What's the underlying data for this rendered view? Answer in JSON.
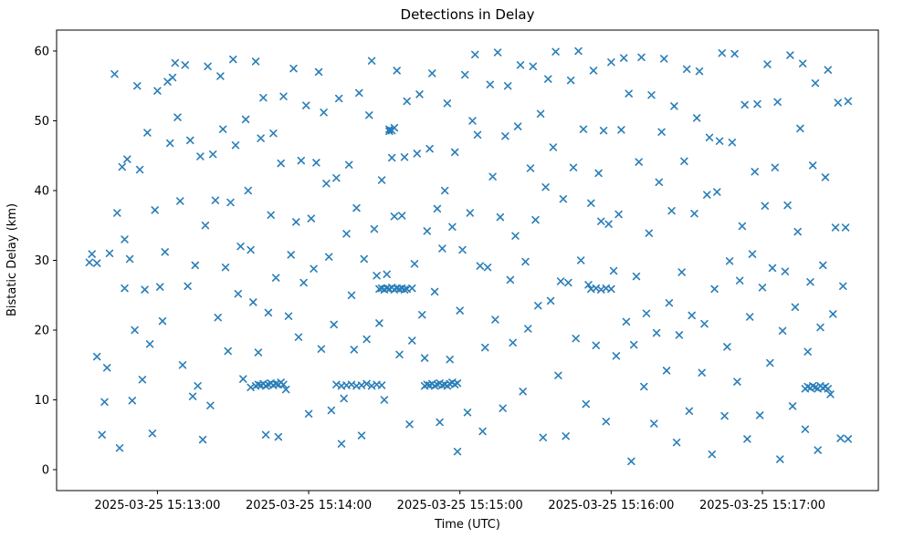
{
  "figure": {
    "title": "Detections in Delay",
    "xlabel": "Time (UTC)",
    "ylabel": "Bistatic Delay (km)"
  },
  "chart_data": {
    "type": "scatter",
    "title": "Detections in Delay",
    "xlabel": "Time (UTC)",
    "ylabel": "Bistatic Delay (km)",
    "marker": "x",
    "marker_color": "#1f77b4",
    "x_axis_unit": "seconds, 0 = 2025-03-25 15:12:00 UTC",
    "xlim": [
      20,
      346
    ],
    "ylim": [
      -3,
      63
    ],
    "xticks": [
      {
        "value": 60,
        "label": "2025-03-25 15:13:00"
      },
      {
        "value": 120,
        "label": "2025-03-25 15:14:00"
      },
      {
        "value": 180,
        "label": "2025-03-25 15:15:00"
      },
      {
        "value": 240,
        "label": "2025-03-25 15:16:00"
      },
      {
        "value": 300,
        "label": "2025-03-25 15:17:00"
      }
    ],
    "yticks": [
      0,
      10,
      20,
      30,
      40,
      50,
      60
    ],
    "points": [
      [
        33,
        29.7
      ],
      [
        34,
        30.9
      ],
      [
        36,
        29.6
      ],
      [
        36,
        16.2
      ],
      [
        38,
        5.0
      ],
      [
        39,
        9.7
      ],
      [
        40,
        14.6
      ],
      [
        41,
        31.0
      ],
      [
        43,
        56.7
      ],
      [
        44,
        36.8
      ],
      [
        45,
        3.1
      ],
      [
        46,
        43.4
      ],
      [
        47,
        33.0
      ],
      [
        47,
        26.0
      ],
      [
        48,
        44.5
      ],
      [
        49,
        30.2
      ],
      [
        50,
        9.9
      ],
      [
        51,
        20.0
      ],
      [
        52,
        55.0
      ],
      [
        53,
        43.0
      ],
      [
        54,
        12.9
      ],
      [
        55,
        25.8
      ],
      [
        56,
        48.3
      ],
      [
        57,
        18.0
      ],
      [
        58,
        5.2
      ],
      [
        59,
        37.2
      ],
      [
        60,
        54.3
      ],
      [
        61,
        26.2
      ],
      [
        62,
        21.3
      ],
      [
        63,
        31.2
      ],
      [
        64,
        55.6
      ],
      [
        65,
        46.8
      ],
      [
        66,
        56.2
      ],
      [
        67,
        58.3
      ],
      [
        68,
        50.5
      ],
      [
        69,
        38.5
      ],
      [
        70,
        15.0
      ],
      [
        71,
        58.0
      ],
      [
        72,
        26.3
      ],
      [
        73,
        47.2
      ],
      [
        74,
        10.5
      ],
      [
        75,
        29.3
      ],
      [
        76,
        12.0
      ],
      [
        77,
        44.9
      ],
      [
        78,
        4.3
      ],
      [
        79,
        35.0
      ],
      [
        80,
        57.8
      ],
      [
        81,
        9.2
      ],
      [
        82,
        45.2
      ],
      [
        83,
        38.6
      ],
      [
        84,
        21.8
      ],
      [
        85,
        56.4
      ],
      [
        86,
        48.8
      ],
      [
        87,
        29.0
      ],
      [
        88,
        17.0
      ],
      [
        89,
        38.3
      ],
      [
        90,
        58.8
      ],
      [
        91,
        46.5
      ],
      [
        92,
        25.2
      ],
      [
        93,
        32.0
      ],
      [
        94,
        13.0
      ],
      [
        95,
        50.2
      ],
      [
        96,
        40.0
      ],
      [
        97,
        31.5
      ],
      [
        98,
        24.0
      ],
      [
        99,
        58.5
      ],
      [
        100,
        16.8
      ],
      [
        101,
        47.5
      ],
      [
        102,
        53.3
      ],
      [
        103,
        5.0
      ],
      [
        104,
        22.5
      ],
      [
        105,
        36.5
      ],
      [
        106,
        48.2
      ],
      [
        107,
        27.5
      ],
      [
        108,
        4.7
      ],
      [
        109,
        43.9
      ],
      [
        110,
        53.5
      ],
      [
        111,
        11.5
      ],
      [
        112,
        22.0
      ],
      [
        113,
        30.8
      ],
      [
        114,
        57.5
      ],
      [
        115,
        35.5
      ],
      [
        116,
        19.0
      ],
      [
        117,
        44.3
      ],
      [
        118,
        26.8
      ],
      [
        119,
        52.2
      ],
      [
        120,
        8.0
      ],
      [
        121,
        36.0
      ],
      [
        122,
        28.8
      ],
      [
        123,
        44.0
      ],
      [
        124,
        57.0
      ],
      [
        125,
        17.3
      ],
      [
        97,
        11.8
      ],
      [
        99,
        12.0
      ],
      [
        100,
        12.2
      ],
      [
        101,
        12.1
      ],
      [
        102,
        12.3
      ],
      [
        103,
        12.0
      ],
      [
        104,
        12.2
      ],
      [
        105,
        12.4
      ],
      [
        106,
        12.1
      ],
      [
        107,
        12.3
      ],
      [
        108,
        12.2
      ],
      [
        109,
        12.5
      ],
      [
        110,
        12.2
      ],
      [
        126,
        51.2
      ],
      [
        127,
        41.0
      ],
      [
        128,
        30.5
      ],
      [
        129,
        8.5
      ],
      [
        130,
        20.8
      ],
      [
        131,
        41.8
      ],
      [
        132,
        53.2
      ],
      [
        133,
        3.7
      ],
      [
        134,
        10.2
      ],
      [
        135,
        33.8
      ],
      [
        136,
        43.7
      ],
      [
        137,
        25.0
      ],
      [
        138,
        17.2
      ],
      [
        139,
        37.5
      ],
      [
        140,
        54.0
      ],
      [
        141,
        4.9
      ],
      [
        142,
        30.2
      ],
      [
        143,
        18.7
      ],
      [
        144,
        50.8
      ],
      [
        145,
        58.6
      ],
      [
        146,
        34.5
      ],
      [
        147,
        27.8
      ],
      [
        148,
        21.0
      ],
      [
        149,
        41.5
      ],
      [
        150,
        10.0
      ],
      [
        151,
        28.0
      ],
      [
        152,
        48.5
      ],
      [
        153,
        44.7
      ],
      [
        154,
        36.3
      ],
      [
        155,
        57.2
      ],
      [
        131,
        12.2
      ],
      [
        133,
        12.0
      ],
      [
        135,
        12.1
      ],
      [
        137,
        12.2
      ],
      [
        139,
        12.0
      ],
      [
        141,
        12.1
      ],
      [
        143,
        12.3
      ],
      [
        145,
        12.0
      ],
      [
        147,
        12.2
      ],
      [
        149,
        12.1
      ],
      [
        148,
        25.9
      ],
      [
        149,
        26.0
      ],
      [
        150,
        25.8
      ],
      [
        151,
        26.0
      ],
      [
        152,
        25.9
      ],
      [
        153,
        26.1
      ],
      [
        154,
        25.8
      ],
      [
        155,
        26.0
      ],
      [
        156,
        25.9
      ],
      [
        157,
        26.0
      ],
      [
        158,
        25.8
      ],
      [
        159,
        25.9
      ],
      [
        161,
        26.0
      ],
      [
        152,
        48.8
      ],
      [
        153,
        48.6
      ],
      [
        154,
        49.0
      ],
      [
        156,
        16.5
      ],
      [
        157,
        36.4
      ],
      [
        158,
        44.8
      ],
      [
        159,
        52.8
      ],
      [
        160,
        6.5
      ],
      [
        161,
        18.5
      ],
      [
        162,
        29.5
      ],
      [
        163,
        45.3
      ],
      [
        164,
        53.8
      ],
      [
        165,
        22.2
      ],
      [
        166,
        16.0
      ],
      [
        167,
        34.2
      ],
      [
        168,
        46.0
      ],
      [
        169,
        56.8
      ],
      [
        170,
        25.5
      ],
      [
        171,
        37.4
      ],
      [
        172,
        6.8
      ],
      [
        173,
        31.7
      ],
      [
        174,
        40.0
      ],
      [
        175,
        52.5
      ],
      [
        176,
        15.8
      ],
      [
        177,
        34.8
      ],
      [
        178,
        45.5
      ],
      [
        179,
        2.6
      ],
      [
        180,
        22.8
      ],
      [
        181,
        31.5
      ],
      [
        182,
        56.6
      ],
      [
        183,
        8.2
      ],
      [
        184,
        36.8
      ],
      [
        185,
        50.0
      ],
      [
        166,
        12.0
      ],
      [
        167,
        12.2
      ],
      [
        168,
        12.1
      ],
      [
        169,
        12.3
      ],
      [
        170,
        12.0
      ],
      [
        171,
        12.2
      ],
      [
        172,
        12.4
      ],
      [
        173,
        12.1
      ],
      [
        174,
        12.2
      ],
      [
        175,
        12.0
      ],
      [
        176,
        12.3
      ],
      [
        177,
        12.5
      ],
      [
        178,
        12.2
      ],
      [
        179,
        12.4
      ],
      [
        186,
        59.5
      ],
      [
        187,
        48.0
      ],
      [
        188,
        29.2
      ],
      [
        189,
        5.5
      ],
      [
        190,
        17.5
      ],
      [
        191,
        29.0
      ],
      [
        192,
        55.2
      ],
      [
        193,
        42.0
      ],
      [
        194,
        21.5
      ],
      [
        195,
        59.8
      ],
      [
        196,
        36.2
      ],
      [
        197,
        8.8
      ],
      [
        198,
        47.8
      ],
      [
        199,
        55.0
      ],
      [
        200,
        27.2
      ],
      [
        201,
        18.2
      ],
      [
        202,
        33.5
      ],
      [
        203,
        49.2
      ],
      [
        204,
        58.0
      ],
      [
        205,
        11.2
      ],
      [
        206,
        29.8
      ],
      [
        207,
        20.2
      ],
      [
        208,
        43.2
      ],
      [
        209,
        57.8
      ],
      [
        210,
        35.8
      ],
      [
        211,
        23.5
      ],
      [
        212,
        51.0
      ],
      [
        213,
        4.6
      ],
      [
        214,
        40.5
      ],
      [
        215,
        56.0
      ],
      [
        216,
        24.2
      ],
      [
        217,
        46.2
      ],
      [
        218,
        59.9
      ],
      [
        219,
        13.5
      ],
      [
        220,
        27.0
      ],
      [
        221,
        38.8
      ],
      [
        222,
        4.8
      ],
      [
        223,
        26.8
      ],
      [
        224,
        55.8
      ],
      [
        225,
        43.3
      ],
      [
        226,
        18.8
      ],
      [
        227,
        60.0
      ],
      [
        228,
        30.0
      ],
      [
        229,
        48.8
      ],
      [
        230,
        9.4
      ],
      [
        231,
        26.5
      ],
      [
        232,
        38.2
      ],
      [
        233,
        57.2
      ],
      [
        234,
        17.8
      ],
      [
        235,
        42.5
      ],
      [
        236,
        35.6
      ],
      [
        237,
        48.6
      ],
      [
        238,
        6.9
      ],
      [
        239,
        35.2
      ],
      [
        240,
        58.4
      ],
      [
        241,
        28.5
      ],
      [
        242,
        16.3
      ],
      [
        243,
        36.6
      ],
      [
        244,
        48.7
      ],
      [
        245,
        59.0
      ],
      [
        232,
        25.9
      ],
      [
        234,
        26.0
      ],
      [
        236,
        25.8
      ],
      [
        238,
        26.0
      ],
      [
        240,
        25.9
      ],
      [
        246,
        21.2
      ],
      [
        247,
        53.9
      ],
      [
        248,
        1.2
      ],
      [
        249,
        17.9
      ],
      [
        250,
        27.7
      ],
      [
        251,
        44.1
      ],
      [
        252,
        59.1
      ],
      [
        253,
        11.9
      ],
      [
        254,
        22.4
      ],
      [
        255,
        33.9
      ],
      [
        256,
        53.7
      ],
      [
        257,
        6.6
      ],
      [
        258,
        19.6
      ],
      [
        259,
        41.2
      ],
      [
        260,
        48.4
      ],
      [
        261,
        58.9
      ],
      [
        262,
        14.2
      ],
      [
        263,
        23.9
      ],
      [
        264,
        37.1
      ],
      [
        265,
        52.1
      ],
      [
        266,
        3.9
      ],
      [
        267,
        19.3
      ],
      [
        268,
        28.3
      ],
      [
        269,
        44.2
      ],
      [
        270,
        57.4
      ],
      [
        271,
        8.4
      ],
      [
        272,
        22.1
      ],
      [
        273,
        36.7
      ],
      [
        274,
        50.4
      ],
      [
        275,
        57.1
      ],
      [
        276,
        13.9
      ],
      [
        277,
        20.9
      ],
      [
        278,
        39.4
      ],
      [
        279,
        47.6
      ],
      [
        280,
        2.2
      ],
      [
        281,
        25.9
      ],
      [
        282,
        39.8
      ],
      [
        283,
        47.1
      ],
      [
        284,
        59.7
      ],
      [
        285,
        7.7
      ],
      [
        286,
        17.6
      ],
      [
        287,
        29.9
      ],
      [
        288,
        46.9
      ],
      [
        289,
        59.6
      ],
      [
        290,
        12.6
      ],
      [
        291,
        27.1
      ],
      [
        292,
        34.9
      ],
      [
        293,
        52.3
      ],
      [
        294,
        4.4
      ],
      [
        295,
        21.9
      ],
      [
        296,
        30.9
      ],
      [
        297,
        42.7
      ],
      [
        298,
        52.4
      ],
      [
        299,
        7.8
      ],
      [
        300,
        26.1
      ],
      [
        301,
        37.8
      ],
      [
        302,
        58.1
      ],
      [
        303,
        15.3
      ],
      [
        304,
        28.9
      ],
      [
        305,
        43.3
      ],
      [
        306,
        52.7
      ],
      [
        307,
        1.5
      ],
      [
        308,
        19.9
      ],
      [
        309,
        28.4
      ],
      [
        310,
        37.9
      ],
      [
        311,
        59.4
      ],
      [
        312,
        9.1
      ],
      [
        313,
        23.3
      ],
      [
        314,
        34.1
      ],
      [
        315,
        48.9
      ],
      [
        316,
        58.2
      ],
      [
        317,
        5.8
      ],
      [
        318,
        16.9
      ],
      [
        319,
        26.9
      ],
      [
        320,
        43.6
      ],
      [
        321,
        55.4
      ],
      [
        322,
        2.8
      ],
      [
        323,
        20.4
      ],
      [
        324,
        29.3
      ],
      [
        325,
        41.9
      ],
      [
        326,
        57.3
      ],
      [
        327,
        10.8
      ],
      [
        328,
        22.3
      ],
      [
        329,
        34.7
      ],
      [
        330,
        52.6
      ],
      [
        331,
        4.5
      ],
      [
        332,
        26.3
      ],
      [
        333,
        34.7
      ],
      [
        334,
        52.8
      ],
      [
        334,
        4.4
      ],
      [
        317,
        11.6
      ],
      [
        318,
        11.9
      ],
      [
        319,
        11.7
      ],
      [
        320,
        12.0
      ],
      [
        321,
        11.8
      ],
      [
        322,
        11.6
      ],
      [
        323,
        12.0
      ],
      [
        324,
        11.7
      ],
      [
        325,
        11.9
      ],
      [
        326,
        11.6
      ]
    ]
  }
}
